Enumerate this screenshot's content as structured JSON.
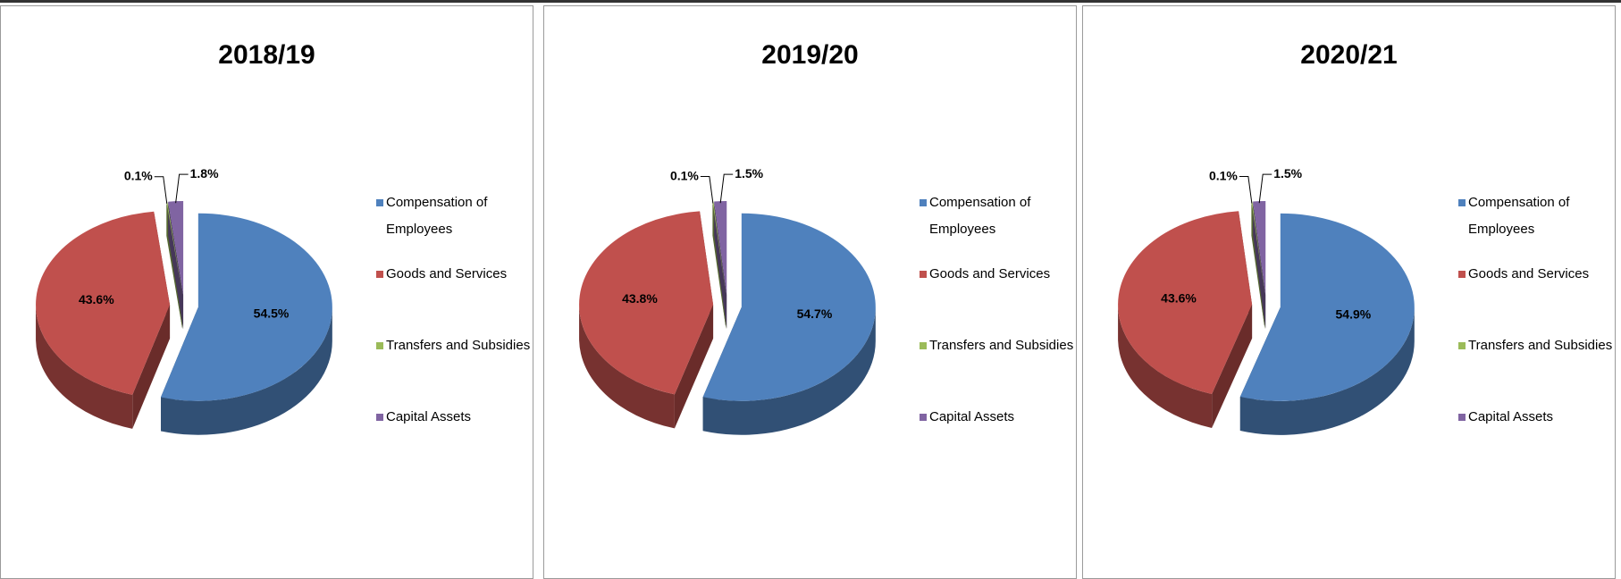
{
  "chart_data": [
    {
      "type": "pie",
      "title": "2018/19",
      "categories": [
        "Compensation of Employees",
        "Goods and Services",
        "Transfers and Subsidies",
        "Capital Assets"
      ],
      "values": [
        54.5,
        43.6,
        0.1,
        1.8
      ],
      "value_labels": [
        "54.5%",
        "43.6%",
        "0.1%",
        "1.8%"
      ],
      "colors": [
        "#4f81bd",
        "#c0504d",
        "#9bbb59",
        "#8064a2"
      ]
    },
    {
      "type": "pie",
      "title": "2019/20",
      "categories": [
        "Compensation of Employees",
        "Goods and Services",
        "Transfers and Subsidies",
        "Capital Assets"
      ],
      "values": [
        54.7,
        43.8,
        0.1,
        1.5
      ],
      "value_labels": [
        "54.7%",
        "43.8%",
        "0.1%",
        "1.5%"
      ],
      "colors": [
        "#4f81bd",
        "#c0504d",
        "#9bbb59",
        "#8064a2"
      ]
    },
    {
      "type": "pie",
      "title": "2020/21",
      "categories": [
        "Compensation of Employees",
        "Goods and Services",
        "Transfers and Subsidies",
        "Capital Assets"
      ],
      "values": [
        54.9,
        43.6,
        0.1,
        1.5
      ],
      "value_labels": [
        "54.9%",
        "43.6%",
        "0.1%",
        "1.5%"
      ],
      "colors": [
        "#4f81bd",
        "#c0504d",
        "#9bbb59",
        "#8064a2"
      ]
    }
  ]
}
